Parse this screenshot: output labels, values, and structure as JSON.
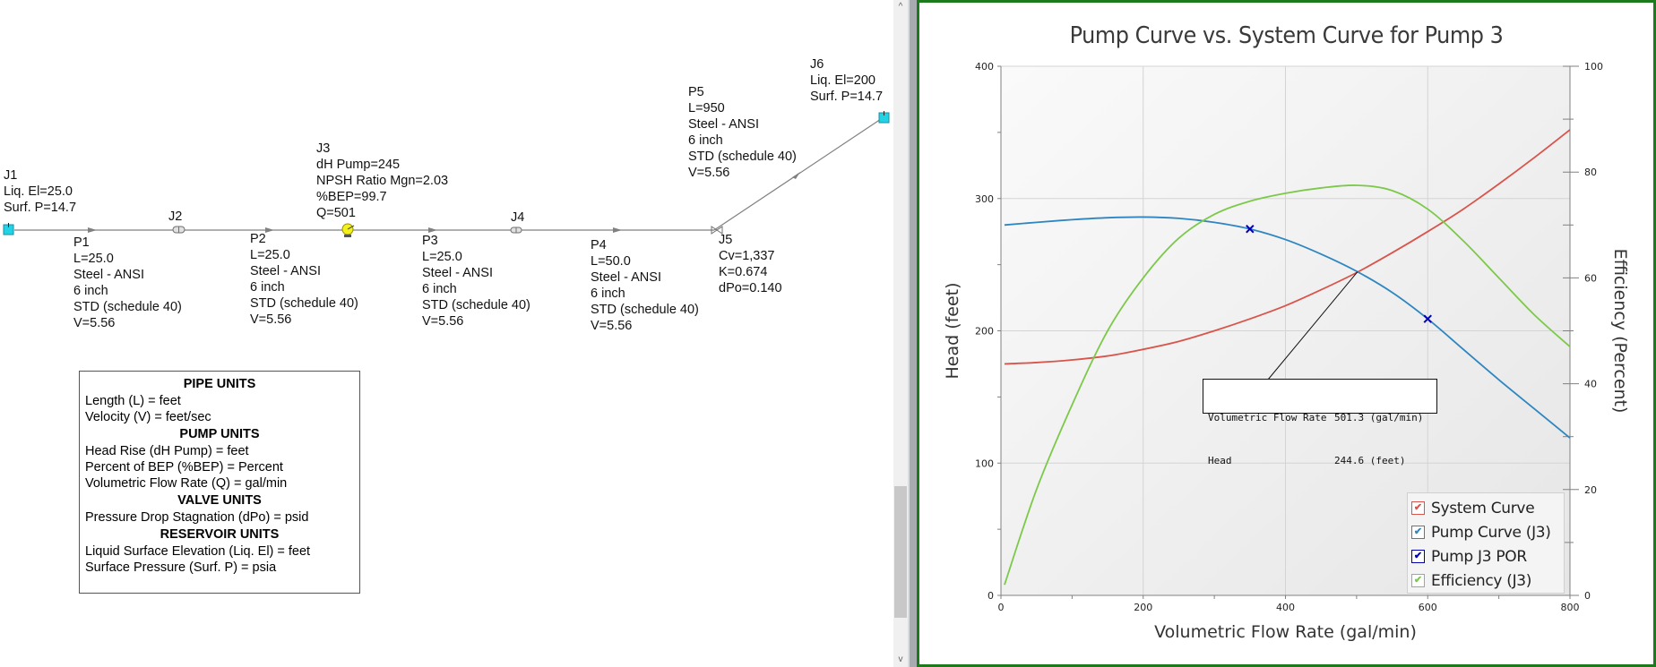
{
  "workspace": {
    "nodes": {
      "J1": {
        "lines": [
          "J1",
          "Liq. El=25.0",
          "Surf. P=14.7"
        ]
      },
      "J2": {
        "lines": [
          "J2"
        ]
      },
      "J3": {
        "lines": [
          "J3",
          "dH Pump=245",
          "NPSH Ratio Mgn=2.03",
          "%BEP=99.7",
          "Q=501"
        ]
      },
      "J4": {
        "lines": [
          "J4"
        ]
      },
      "J5": {
        "lines": [
          "J5",
          "Cv=1,337",
          "K=0.674",
          "dPo=0.140"
        ]
      },
      "J6": {
        "lines": [
          "J6",
          "Liq. El=200",
          "Surf. P=14.7"
        ]
      }
    },
    "pipes": {
      "P1": {
        "lines": [
          "P1",
          "L=25.0",
          "Steel - ANSI",
          "6 inch",
          "STD (schedule 40)",
          "V=5.56"
        ]
      },
      "P2": {
        "lines": [
          "P2",
          "L=25.0",
          "Steel - ANSI",
          "6 inch",
          "STD (schedule 40)",
          "V=5.56"
        ]
      },
      "P3": {
        "lines": [
          "P3",
          "L=25.0",
          "Steel - ANSI",
          "6 inch",
          "STD (schedule 40)",
          "V=5.56"
        ]
      },
      "P4": {
        "lines": [
          "P4",
          "L=50.0",
          "Steel - ANSI",
          "6 inch",
          "STD (schedule 40)",
          "V=5.56"
        ]
      },
      "P5": {
        "lines": [
          "P5",
          "L=950",
          "Steel - ANSI",
          "6 inch",
          "STD (schedule 40)",
          "V=5.56"
        ]
      }
    },
    "units_legend": {
      "pipe_header": "PIPE UNITS",
      "pipe_rows": [
        "Length (L) = feet",
        "Velocity (V) = feet/sec"
      ],
      "pump_header": "PUMP UNITS",
      "pump_rows": [
        "Head Rise (dH Pump) = feet",
        "Percent of BEP (%BEP) = Percent",
        "Volumetric Flow Rate (Q) = gal/min"
      ],
      "valve_header": "VALVE UNITS",
      "valve_rows": [
        "Pressure Drop Stagnation (dPo) = psid"
      ],
      "reservoir_header": "RESERVOIR UNITS",
      "reservoir_rows": [
        "Liquid Surface Elevation (Liq. El) = feet",
        "Surface Pressure (Surf. P) = psia"
      ]
    },
    "colors": {
      "reservoir": "#22d3e6",
      "pump": "#f2f21a",
      "pipe": "#808080"
    }
  },
  "scrollbar": {
    "up_icon": "^",
    "down_icon": "v"
  },
  "graph": {
    "title": "Pump Curve vs. System Curve for Pump 3",
    "annotation": {
      "rows": [
        {
          "label": "Volumetric Flow Rate",
          "value": "501.3 (gal/min)"
        },
        {
          "label": "Head",
          "value": "244.6 (feet)"
        }
      ]
    },
    "legend": [
      {
        "label": "System Curve",
        "color": "#d9544a",
        "checked": "✔"
      },
      {
        "label": "Pump Curve (J3)",
        "color": "#2e86c1",
        "checked": "✔"
      },
      {
        "label": "Pump J3 POR",
        "color": "#0000b0",
        "checked": "✔"
      },
      {
        "label": "Efficiency (J3)",
        "color": "#7cc94a",
        "checked": "✔"
      }
    ],
    "border_color": "#1c7a1c"
  },
  "chart_data": {
    "type": "line",
    "title": "Pump Curve vs. System Curve for Pump 3",
    "xlabel": "Volumetric Flow Rate (gal/min)",
    "ylabel": "Head (feet)",
    "y2label": "Efficiency (Percent)",
    "xlim": [
      0,
      800
    ],
    "ylim": [
      0,
      400
    ],
    "y2lim": [
      0,
      100
    ],
    "x_ticks": [
      "0",
      "200",
      "400",
      "600",
      "800"
    ],
    "y_ticks": [
      "0",
      "100",
      "200",
      "300",
      "400"
    ],
    "y2_ticks": [
      "0",
      "20",
      "40",
      "60",
      "80",
      "100"
    ],
    "grid": true,
    "legend_position": "lower right",
    "x": [
      5,
      50,
      100,
      150,
      200,
      250,
      300,
      350,
      400,
      450,
      500,
      550,
      600,
      650,
      700,
      750,
      800
    ],
    "series": [
      {
        "name": "System Curve",
        "axis": "left",
        "color": "#d9544a",
        "values": [
          175,
          176,
          178,
          181,
          186,
          192,
          200,
          209,
          219,
          231,
          244,
          259,
          275,
          292,
          311,
          331,
          352
        ]
      },
      {
        "name": "Pump Curve (J3)",
        "axis": "left",
        "color": "#2e86c1",
        "values": [
          280,
          282,
          284,
          285.5,
          286,
          285,
          282,
          277,
          269,
          258,
          245,
          229,
          209,
          186,
          163,
          141,
          119
        ]
      },
      {
        "name": "Efficiency (J3)",
        "axis": "right",
        "color": "#7cc94a",
        "values": [
          2,
          20,
          36,
          50,
          60,
          67.5,
          72,
          74.5,
          76,
          77,
          77.5,
          76.5,
          73,
          67,
          60,
          53,
          47
        ]
      }
    ],
    "markers": {
      "name": "Pump J3 POR",
      "color": "#0000b0",
      "symbol": "x",
      "points": [
        {
          "x": 350,
          "y": 277
        },
        {
          "x": 600,
          "y": 209
        }
      ]
    },
    "annotations": [
      {
        "x": 501.3,
        "y": 244.6,
        "text": "Volumetric Flow Rate 501.3 (gal/min) / Head 244.6 (feet)"
      }
    ]
  }
}
